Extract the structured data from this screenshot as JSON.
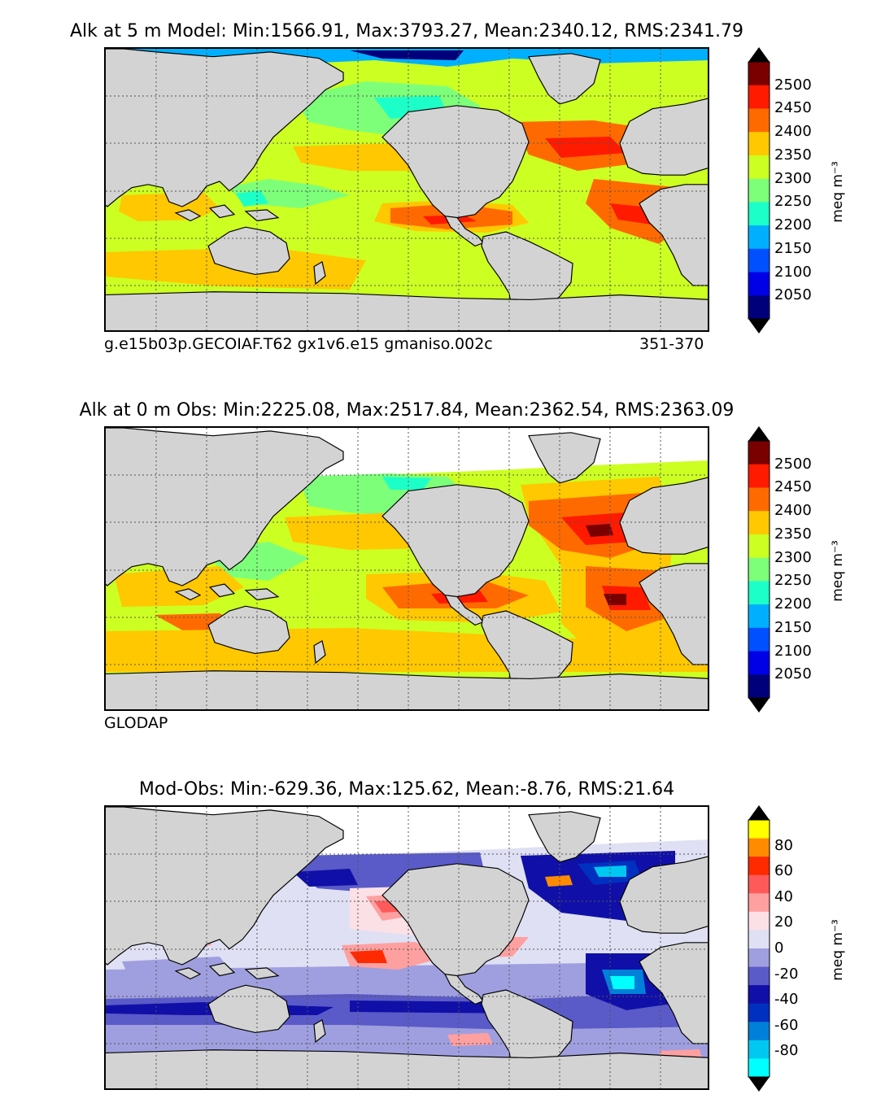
{
  "panels": [
    {
      "id": "model",
      "title": "Alk at 5 m Model: Min:1566.91, Max:3793.27, Mean:2340.12, RMS:2341.79",
      "caption_left": "g.e15b03p.GECOIAF.T62 gx1v6.e15 gmaniso.002c",
      "caption_right": "351-370",
      "colorbar_label": "meq m⁻³",
      "colorbar_ticks": [
        "2500",
        "2450",
        "2400",
        "2350",
        "2300",
        "2250",
        "2200",
        "2150",
        "2100",
        "2050"
      ]
    },
    {
      "id": "obs",
      "title": "Alk at 0 m Obs: Min:2225.08, Max:2517.84, Mean:2362.54, RMS:2363.09",
      "caption_left": "GLODAP",
      "colorbar_label": "meq m⁻³",
      "colorbar_ticks": [
        "2500",
        "2450",
        "2400",
        "2350",
        "2300",
        "2250",
        "2200",
        "2150",
        "2100",
        "2050"
      ]
    },
    {
      "id": "diff",
      "title": "Mod-Obs: Min:-629.36, Max:125.62, Mean:-8.76, RMS:21.64",
      "colorbar_label": "meq m⁻³",
      "colorbar_ticks": [
        "80",
        "60",
        "40",
        "20",
        "0",
        "-20",
        "-40",
        "-60",
        "-80"
      ]
    }
  ],
  "colors": {
    "land": "#d3d3d3",
    "abs_scale": [
      "#7a0000",
      "#ff1a00",
      "#ff6a00",
      "#ffc800",
      "#ccff22",
      "#7dff7a",
      "#1dffc8",
      "#00b0ff",
      "#0050ff",
      "#0000e6",
      "#00007a"
    ],
    "diff_scale": [
      "#ffff00",
      "#ff8c00",
      "#ff2a00",
      "#ff5a5a",
      "#ffa0a0",
      "#fbe0e6",
      "#e0e0f4",
      "#9f9fe0",
      "#5a5ac8",
      "#1010a8",
      "#0030c0",
      "#0080d8",
      "#00c8f0",
      "#00ffff"
    ]
  },
  "chart_data": [
    {
      "type": "heatmap",
      "title": "Alk at 5 m Model: Min:1566.91, Max:3793.27, Mean:2340.12, RMS:2341.79",
      "variable": "Alkalinity",
      "depth": "5 m",
      "units": "meq m^-3",
      "stats": {
        "min": 1566.91,
        "max": 3793.27,
        "mean": 2340.12,
        "rms": 2341.79
      },
      "colorbar_levels": [
        2050,
        2100,
        2150,
        2200,
        2250,
        2300,
        2350,
        2400,
        2450,
        2500
      ],
      "extend": "both",
      "source": "g.e15b03p.GECOIAF.T62 gx1v6.e15 gmaniso.002c",
      "years": "351-370"
    },
    {
      "type": "heatmap",
      "title": "Alk at 0 m Obs: Min:2225.08, Max:2517.84, Mean:2362.54, RMS:2363.09",
      "variable": "Alkalinity",
      "depth": "0 m",
      "units": "meq m^-3",
      "stats": {
        "min": 2225.08,
        "max": 2517.84,
        "mean": 2362.54,
        "rms": 2363.09
      },
      "colorbar_levels": [
        2050,
        2100,
        2150,
        2200,
        2250,
        2300,
        2350,
        2400,
        2450,
        2500
      ],
      "extend": "both",
      "source": "GLODAP"
    },
    {
      "type": "heatmap",
      "title": "Mod-Obs: Min:-629.36, Max:125.62, Mean:-8.76, RMS:21.64",
      "variable": "Alkalinity difference",
      "units": "meq m^-3",
      "stats": {
        "min": -629.36,
        "max": 125.62,
        "mean": -8.76,
        "rms": 21.64
      },
      "colorbar_levels": [
        -80,
        -70,
        -60,
        -50,
        -40,
        -30,
        -20,
        -10,
        0,
        10,
        20,
        30,
        40,
        50,
        60,
        70,
        80
      ],
      "extend": "both"
    }
  ]
}
